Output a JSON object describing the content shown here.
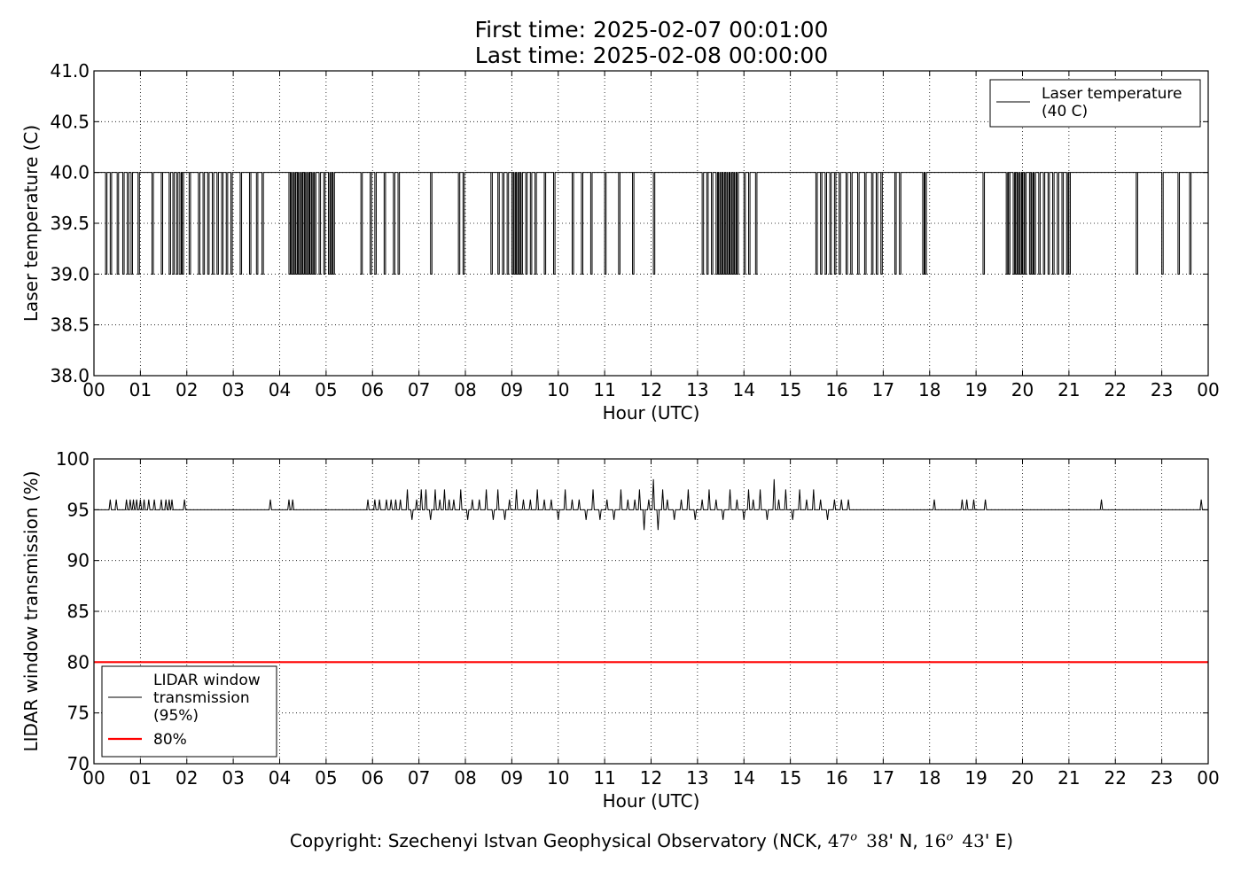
{
  "header": {
    "first_time": "First time: 2025-02-07 00:01:00",
    "last_time": "Last time: 2025-02-08 00:00:00"
  },
  "footer": {
    "prefix": "Copyright: Szechenyi Istvan Geophysical Observatory (NCK, ",
    "lat_deg": "47",
    "lat_sup": "o",
    "lat_min": "38",
    "lat_suffix": "' N, ",
    "lon_deg": "16",
    "lon_sup": "o",
    "lon_min": "43",
    "lon_suffix": "' E)"
  },
  "chart_data": [
    {
      "type": "line",
      "xlabel": "Hour (UTC)",
      "ylabel": "Laser temperature (C)",
      "xlim": [
        0,
        24
      ],
      "ylim": [
        38.0,
        41.0
      ],
      "grid": true,
      "legend": "top-right",
      "x_ticks": [
        "00",
        "01",
        "02",
        "03",
        "04",
        "05",
        "06",
        "07",
        "08",
        "09",
        "10",
        "11",
        "12",
        "13",
        "14",
        "15",
        "16",
        "17",
        "18",
        "19",
        "20",
        "21",
        "22",
        "23",
        "00"
      ],
      "y_ticks": [
        "38.0",
        "38.5",
        "39.0",
        "39.5",
        "40.0",
        "40.5",
        "41.0"
      ],
      "baseline": 40.0,
      "series": [
        {
          "name": "Laser temperature\n(40 C)",
          "color": "#000000",
          "baseline": 40.0,
          "dip_value": 39.0,
          "dip_hours": [
            0.25,
            0.35,
            0.5,
            0.62,
            0.72,
            0.8,
            0.95,
            1.25,
            1.45,
            1.62,
            1.7,
            1.78,
            1.85,
            1.9,
            2.05,
            2.25,
            2.35,
            2.45,
            2.55,
            2.65,
            2.75,
            2.85,
            2.95,
            3.15,
            3.35,
            3.5,
            3.62,
            4.2,
            4.25,
            4.3,
            4.35,
            4.4,
            4.45,
            4.5,
            4.55,
            4.6,
            4.65,
            4.7,
            4.75,
            4.85,
            4.95,
            5.05,
            5.1,
            5.15,
            5.75,
            5.95,
            6.05,
            6.25,
            6.45,
            6.55,
            7.25,
            7.85,
            7.95,
            8.55,
            8.7,
            8.8,
            8.9,
            9.0,
            9.05,
            9.1,
            9.15,
            9.2,
            9.3,
            9.4,
            9.5,
            9.7,
            9.9,
            10.3,
            10.5,
            10.7,
            11.0,
            11.3,
            11.6,
            12.05,
            13.1,
            13.2,
            13.3,
            13.4,
            13.45,
            13.5,
            13.55,
            13.6,
            13.65,
            13.7,
            13.75,
            13.8,
            13.85,
            14.0,
            14.1,
            14.25,
            15.55,
            15.65,
            15.75,
            15.85,
            15.95,
            16.05,
            16.2,
            16.3,
            16.45,
            16.6,
            16.75,
            16.85,
            16.95,
            17.25,
            17.35,
            17.85,
            17.9,
            19.15,
            19.65,
            19.7,
            19.8,
            19.85,
            19.9,
            19.95,
            20.0,
            20.05,
            20.15,
            20.2,
            20.25,
            20.35,
            20.45,
            20.55,
            20.65,
            20.75,
            20.85,
            20.95,
            21.0,
            22.45,
            23.0,
            23.35,
            23.6
          ]
        }
      ]
    },
    {
      "type": "line",
      "xlabel": "Hour (UTC)",
      "ylabel": "LIDAR window transmission (%)",
      "xlim": [
        0,
        24
      ],
      "ylim": [
        70,
        100
      ],
      "grid": true,
      "legend": "bottom-left",
      "x_ticks": [
        "00",
        "01",
        "02",
        "03",
        "04",
        "05",
        "06",
        "07",
        "08",
        "09",
        "10",
        "11",
        "12",
        "13",
        "14",
        "15",
        "16",
        "17",
        "18",
        "19",
        "20",
        "21",
        "22",
        "23",
        "00"
      ],
      "y_ticks": [
        "70",
        "75",
        "80",
        "85",
        "90",
        "95",
        "100"
      ],
      "series": [
        {
          "name": "LIDAR window\ntransmission\n(95%)",
          "color": "#000000",
          "baseline": 95,
          "spikes": [
            [
              0.35,
              96
            ],
            [
              0.48,
              96
            ],
            [
              0.7,
              96
            ],
            [
              0.78,
              96
            ],
            [
              0.85,
              96
            ],
            [
              0.92,
              96
            ],
            [
              1.0,
              96
            ],
            [
              1.08,
              96
            ],
            [
              1.18,
              96
            ],
            [
              1.3,
              96
            ],
            [
              1.45,
              96
            ],
            [
              1.55,
              96
            ],
            [
              1.62,
              96
            ],
            [
              1.68,
              96
            ],
            [
              1.95,
              96
            ],
            [
              3.8,
              96
            ],
            [
              4.2,
              96
            ],
            [
              4.28,
              96
            ],
            [
              5.9,
              96
            ],
            [
              6.05,
              96
            ],
            [
              6.15,
              96
            ],
            [
              6.3,
              96
            ],
            [
              6.4,
              96
            ],
            [
              6.5,
              96
            ],
            [
              6.6,
              96
            ],
            [
              6.75,
              97
            ],
            [
              6.85,
              94
            ],
            [
              6.95,
              96
            ],
            [
              7.05,
              97
            ],
            [
              7.15,
              97
            ],
            [
              7.25,
              94
            ],
            [
              7.35,
              97
            ],
            [
              7.45,
              96
            ],
            [
              7.55,
              97
            ],
            [
              7.65,
              96
            ],
            [
              7.75,
              96
            ],
            [
              7.9,
              97
            ],
            [
              8.05,
              94
            ],
            [
              8.15,
              96
            ],
            [
              8.3,
              96
            ],
            [
              8.45,
              97
            ],
            [
              8.6,
              94
            ],
            [
              8.7,
              97
            ],
            [
              8.85,
              94
            ],
            [
              8.95,
              96
            ],
            [
              9.1,
              97
            ],
            [
              9.25,
              96
            ],
            [
              9.4,
              96
            ],
            [
              9.55,
              97
            ],
            [
              9.7,
              96
            ],
            [
              9.85,
              96
            ],
            [
              10.0,
              94
            ],
            [
              10.15,
              97
            ],
            [
              10.3,
              96
            ],
            [
              10.45,
              96
            ],
            [
              10.6,
              94
            ],
            [
              10.75,
              97
            ],
            [
              10.9,
              94
            ],
            [
              11.05,
              96
            ],
            [
              11.2,
              94
            ],
            [
              11.35,
              97
            ],
            [
              11.5,
              96
            ],
            [
              11.65,
              96
            ],
            [
              11.75,
              97
            ],
            [
              11.85,
              93
            ],
            [
              11.95,
              96
            ],
            [
              12.05,
              98
            ],
            [
              12.15,
              93
            ],
            [
              12.25,
              97
            ],
            [
              12.35,
              96
            ],
            [
              12.5,
              94
            ],
            [
              12.65,
              96
            ],
            [
              12.8,
              97
            ],
            [
              12.95,
              94
            ],
            [
              13.1,
              96
            ],
            [
              13.25,
              97
            ],
            [
              13.4,
              96
            ],
            [
              13.55,
              94
            ],
            [
              13.7,
              97
            ],
            [
              13.85,
              96
            ],
            [
              14.0,
              94
            ],
            [
              14.1,
              97
            ],
            [
              14.2,
              96
            ],
            [
              14.35,
              97
            ],
            [
              14.5,
              94
            ],
            [
              14.65,
              98
            ],
            [
              14.75,
              96
            ],
            [
              14.9,
              97
            ],
            [
              15.05,
              94
            ],
            [
              15.2,
              97
            ],
            [
              15.35,
              96
            ],
            [
              15.5,
              97
            ],
            [
              15.65,
              96
            ],
            [
              15.8,
              94
            ],
            [
              15.95,
              96
            ],
            [
              16.1,
              96
            ],
            [
              16.25,
              96
            ],
            [
              18.1,
              96
            ],
            [
              18.7,
              96
            ],
            [
              18.8,
              96
            ],
            [
              18.95,
              96
            ],
            [
              19.2,
              96
            ],
            [
              21.7,
              96
            ],
            [
              23.85,
              96
            ]
          ]
        },
        {
          "name": "80%",
          "color": "#ff0000",
          "value": 80
        }
      ]
    }
  ]
}
